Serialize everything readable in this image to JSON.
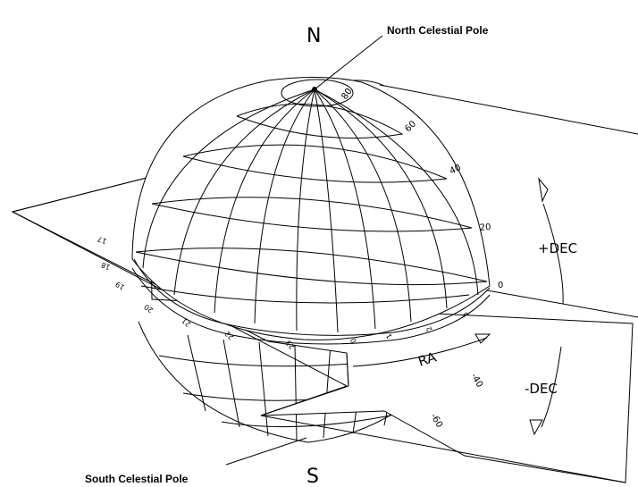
{
  "labels": {
    "north": "N",
    "south": "S",
    "north_pole": "North Celestial Pole",
    "south_pole": "South Celestial Pole",
    "plus_dec": "+DEC",
    "minus_dec": "-DEC",
    "ra": "RA"
  },
  "declination_ticks": [
    "80",
    "60",
    "40",
    "20",
    "0",
    "-40",
    "-60"
  ],
  "ra_ticks": [
    "17",
    "18",
    "19",
    "20",
    "21",
    "22",
    "23",
    "0",
    "1",
    "2",
    "3"
  ]
}
